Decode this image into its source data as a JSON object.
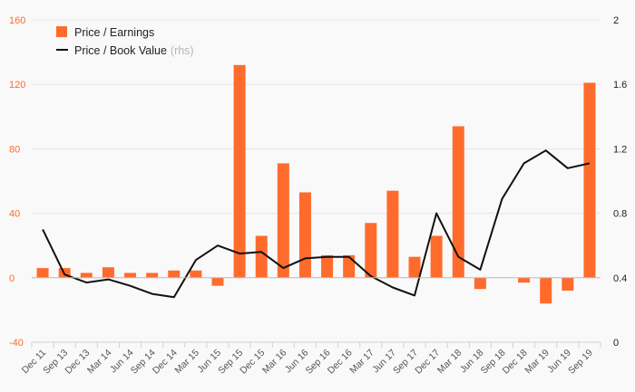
{
  "chart_data": {
    "type": "bar",
    "categories": [
      "Dec 11",
      "Sep 13",
      "Dec 13",
      "Mar 14",
      "Jun 14",
      "Sep 14",
      "Dec 14",
      "Mar 15",
      "Jun 15",
      "Sep 15",
      "Dec 15",
      "Mar 16",
      "Jun 16",
      "Sep 16",
      "Dec 16",
      "Mar 17",
      "Jun 17",
      "Sep 17",
      "Dec 17",
      "Mar 18",
      "Jun 18",
      "Sep 18",
      "Dec 18",
      "Mar 19",
      "Jun 19",
      "Sep 19"
    ],
    "series": [
      {
        "name": "Price / Earnings",
        "type": "bar",
        "axis": "left",
        "color": "#ff6b2c",
        "values": [
          6,
          6,
          3,
          6.5,
          3,
          3,
          4.5,
          4.5,
          -5,
          132,
          26,
          71,
          53,
          14,
          14,
          34,
          54,
          13,
          26,
          94,
          -7,
          0,
          -3,
          -16,
          -8,
          121
        ]
      },
      {
        "name": "Price / Book Value",
        "name_suffix": "(rhs)",
        "type": "line",
        "axis": "right",
        "color": "#111111",
        "values": [
          0.7,
          0.42,
          0.37,
          0.39,
          0.35,
          0.3,
          0.28,
          0.51,
          0.6,
          0.55,
          0.56,
          0.46,
          0.52,
          0.53,
          0.53,
          0.41,
          0.34,
          0.29,
          0.8,
          0.53,
          0.45,
          0.89,
          1.11,
          1.19,
          1.08,
          1.11
        ]
      }
    ],
    "y_left": {
      "ylim": [
        -40,
        160
      ],
      "ticks": [
        "-40",
        "0",
        "40",
        "80",
        "120",
        "160"
      ],
      "color": "#ff6b2c"
    },
    "y_right": {
      "ylim": [
        0,
        2
      ],
      "ticks": [
        "0",
        "0.4",
        "0.8",
        "1.2",
        "1.6",
        "2"
      ],
      "color": "#222222"
    },
    "grid": true,
    "legend_position": "top-left"
  }
}
